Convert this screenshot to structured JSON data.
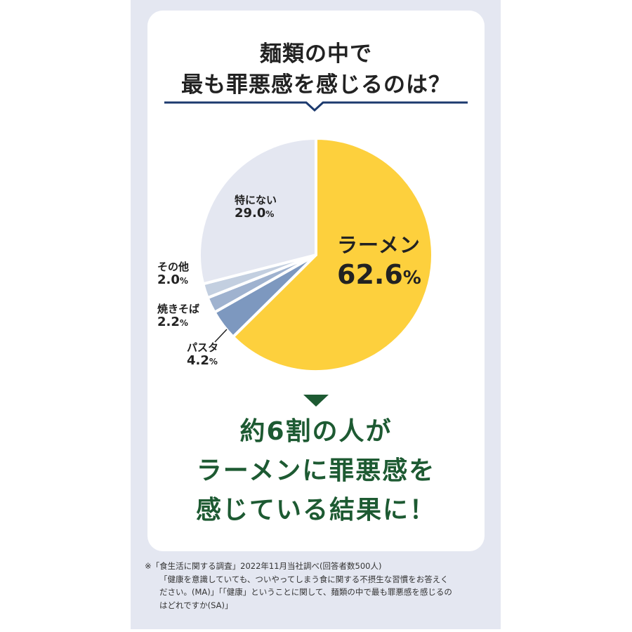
{
  "title": {
    "line1": "麺類の中で",
    "line2": "最も罪悪感を感じるのは？"
  },
  "chart_data": {
    "type": "pie",
    "title": "麺類の中で最も罪悪感を感じるのは？",
    "categories": [
      "ラーメン",
      "パスタ",
      "焼きそば",
      "その他",
      "特にない"
    ],
    "values": [
      62.6,
      4.2,
      2.2,
      2.0,
      29.0
    ],
    "unit": "%",
    "colors": [
      "#fdd03d",
      "#7d98bf",
      "#9fb2cf",
      "#c3cfe0",
      "#e4e7f1"
    ],
    "start_angle": "12 o'clock, clockwise",
    "legend": "none (direct labels)"
  },
  "labels": {
    "ramen": {
      "name": "ラーメン",
      "value": "62.6",
      "pct": "%"
    },
    "none": {
      "name": "特にない",
      "value": "29.0",
      "pct": "%"
    },
    "other": {
      "name": "その他",
      "value": "2.0",
      "pct": "%"
    },
    "yakisoba": {
      "name": "焼きそば",
      "value": "2.2",
      "pct": "%"
    },
    "pasta": {
      "name": "パスタ",
      "value": "4.2",
      "pct": "%"
    }
  },
  "conclusion": {
    "line1": "約6割の人が",
    "line2": "ラーメンに罪悪感を",
    "line3": "感じている結果に！"
  },
  "footnote": {
    "line1": "※「食生活に関する調査」2022年11月当社調べ(回答者数500人)",
    "line2": "「健康を意識していても、ついやってしまう食に関する不摂生な習慣をお答えく",
    "line3": "ださい。(MA)」「「健康」ということに関して、麺類の中で最も罪悪感を感じるの",
    "line4": "はどれですか(SA)」"
  },
  "colors": {
    "panel_bg": "#e4e7f1",
    "card_bg": "#ffffff",
    "title_rule": "#1c3a6e",
    "conclusion_green": "#1d5a32"
  }
}
